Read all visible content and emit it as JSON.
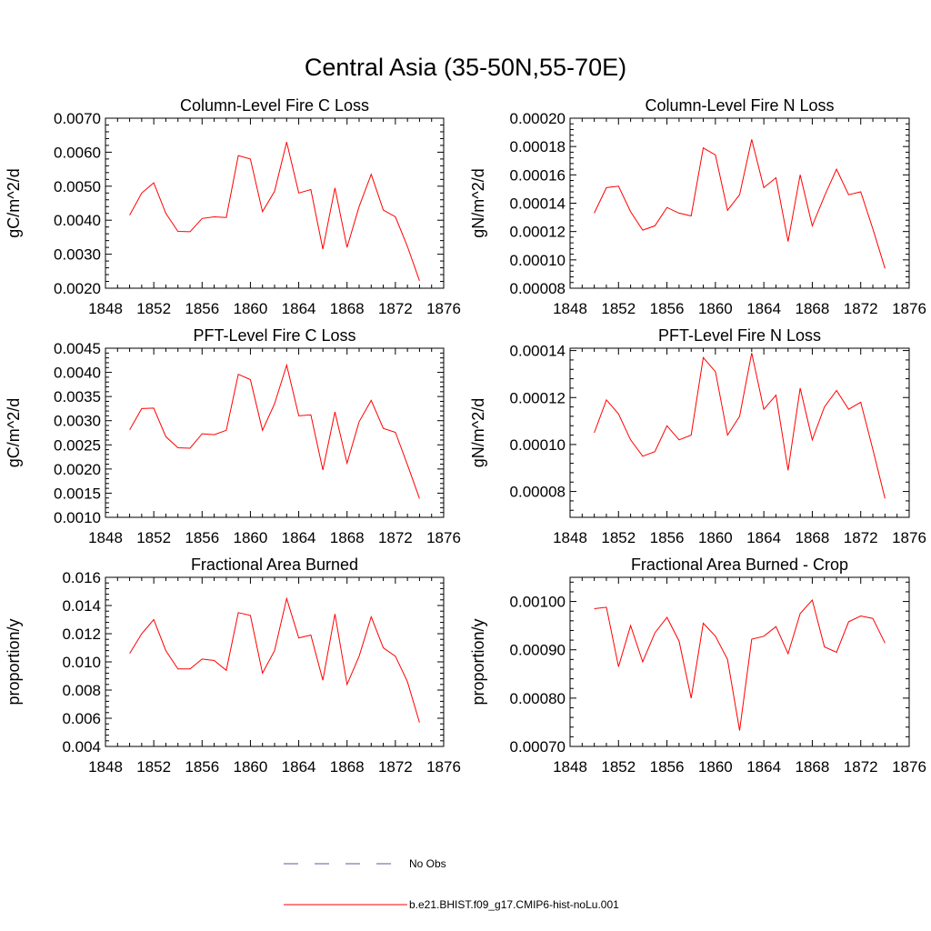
{
  "page_title": "Central Asia (35-50N,55-70E)",
  "colors": {
    "model_line": "#ff0000",
    "obs_line": "#5a5aa8",
    "axis": "#000000"
  },
  "legend": {
    "obs_label": "No Obs",
    "model_label": "b.e21.BHIST.f09_g17.CMIP6-hist-noLu.001"
  },
  "chart_data": [
    {
      "type": "line",
      "title": "Column-Level Fire C Loss",
      "xlabel": "",
      "ylabel": "gC/m^2/d",
      "xlim": [
        1848,
        1876
      ],
      "ylim": [
        0.002,
        0.007
      ],
      "x_ticks": [
        "1848",
        "1852",
        "1856",
        "1860",
        "1864",
        "1868",
        "1872",
        "1876"
      ],
      "y_ticks": [
        "0.0020",
        "0.0030",
        "0.0040",
        "0.0050",
        "0.0060",
        "0.0070"
      ],
      "grid": false,
      "series": [
        {
          "x": [
            1850,
            1851,
            1852,
            1853,
            1854,
            1855,
            1856,
            1857,
            1858,
            1859,
            1860,
            1861,
            1862,
            1863,
            1864,
            1865,
            1866,
            1867,
            1868,
            1869,
            1870,
            1871,
            1872,
            1873,
            1874
          ],
          "values": [
            0.00415,
            0.0048,
            0.0051,
            0.0042,
            0.00367,
            0.00366,
            0.00405,
            0.0041,
            0.00408,
            0.0059,
            0.0058,
            0.00425,
            0.00485,
            0.0063,
            0.0048,
            0.0049,
            0.00315,
            0.00495,
            0.0032,
            0.0044,
            0.00535,
            0.0043,
            0.0041,
            0.00323,
            0.00222
          ]
        }
      ]
    },
    {
      "type": "line",
      "title": "Column-Level Fire N Loss",
      "xlabel": "",
      "ylabel": "gN/m^2/d",
      "xlim": [
        1848,
        1876
      ],
      "ylim": [
        8e-05,
        0.0002
      ],
      "x_ticks": [
        "1848",
        "1852",
        "1856",
        "1860",
        "1864",
        "1868",
        "1872",
        "1876"
      ],
      "y_ticks": [
        "0.00008",
        "0.00010",
        "0.00012",
        "0.00014",
        "0.00016",
        "0.00018",
        "0.00020"
      ],
      "grid": false,
      "series": [
        {
          "x": [
            1850,
            1851,
            1852,
            1853,
            1854,
            1855,
            1856,
            1857,
            1858,
            1859,
            1860,
            1861,
            1862,
            1863,
            1864,
            1865,
            1866,
            1867,
            1868,
            1869,
            1870,
            1871,
            1872,
            1873,
            1874
          ],
          "values": [
            0.000133,
            0.000151,
            0.000152,
            0.000134,
            0.000121,
            0.000124,
            0.000137,
            0.000133,
            0.000131,
            0.000179,
            0.000174,
            0.000135,
            0.000146,
            0.000185,
            0.000151,
            0.000158,
            0.000113,
            0.00016,
            0.000124,
            0.000145,
            0.000164,
            0.000146,
            0.000148,
            0.000122,
            9.4e-05
          ]
        }
      ]
    },
    {
      "type": "line",
      "title": "PFT-Level Fire C Loss",
      "xlabel": "",
      "ylabel": "gC/m^2/d",
      "xlim": [
        1848,
        1876
      ],
      "ylim": [
        0.001,
        0.0045
      ],
      "x_ticks": [
        "1848",
        "1852",
        "1856",
        "1860",
        "1864",
        "1868",
        "1872",
        "1876"
      ],
      "y_ticks": [
        "0.0010",
        "0.0015",
        "0.0020",
        "0.0025",
        "0.0030",
        "0.0035",
        "0.0040",
        "0.0045"
      ],
      "grid": false,
      "series": [
        {
          "x": [
            1850,
            1851,
            1852,
            1853,
            1854,
            1855,
            1856,
            1857,
            1858,
            1859,
            1860,
            1861,
            1862,
            1863,
            1864,
            1865,
            1866,
            1867,
            1868,
            1869,
            1870,
            1871,
            1872,
            1873,
            1874
          ],
          "values": [
            0.00281,
            0.00325,
            0.00326,
            0.00267,
            0.00244,
            0.00243,
            0.00273,
            0.00271,
            0.0028,
            0.00396,
            0.00385,
            0.0028,
            0.00335,
            0.00415,
            0.0031,
            0.00312,
            0.00198,
            0.00318,
            0.00212,
            0.00298,
            0.00342,
            0.00284,
            0.00276,
            0.00209,
            0.00139
          ]
        }
      ]
    },
    {
      "type": "line",
      "title": "PFT-Level Fire N Loss",
      "xlabel": "",
      "ylabel": "gN/m^2/d",
      "xlim": [
        1848,
        1876
      ],
      "ylim": [
        6.9e-05,
        0.000141
      ],
      "x_ticks": [
        "1848",
        "1852",
        "1856",
        "1860",
        "1864",
        "1868",
        "1872",
        "1876"
      ],
      "y_ticks": [
        "0.00008",
        "0.00010",
        "0.00012",
        "0.00014"
      ],
      "grid": false,
      "series": [
        {
          "x": [
            1850,
            1851,
            1852,
            1853,
            1854,
            1855,
            1856,
            1857,
            1858,
            1859,
            1860,
            1861,
            1862,
            1863,
            1864,
            1865,
            1866,
            1867,
            1868,
            1869,
            1870,
            1871,
            1872,
            1873,
            1874
          ],
          "values": [
            0.000105,
            0.000119,
            0.000113,
            0.000102,
            9.5e-05,
            9.7e-05,
            0.000108,
            0.000102,
            0.000104,
            0.000137,
            0.000131,
            0.000104,
            0.000112,
            0.000139,
            0.000115,
            0.000121,
            8.9e-05,
            0.000124,
            0.000102,
            0.000116,
            0.000123,
            0.000115,
            0.000118,
            9.8e-05,
            7.7e-05
          ]
        }
      ]
    },
    {
      "type": "line",
      "title": "Fractional Area Burned",
      "xlabel": "",
      "ylabel": "proportion/y",
      "xlim": [
        1848,
        1876
      ],
      "ylim": [
        0.004,
        0.016
      ],
      "x_ticks": [
        "1848",
        "1852",
        "1856",
        "1860",
        "1864",
        "1868",
        "1872",
        "1876"
      ],
      "y_ticks": [
        "0.004",
        "0.006",
        "0.008",
        "0.010",
        "0.012",
        "0.014",
        "0.016"
      ],
      "grid": false,
      "series": [
        {
          "x": [
            1850,
            1851,
            1852,
            1853,
            1854,
            1855,
            1856,
            1857,
            1858,
            1859,
            1860,
            1861,
            1862,
            1863,
            1864,
            1865,
            1866,
            1867,
            1868,
            1869,
            1870,
            1871,
            1872,
            1873,
            1874
          ],
          "values": [
            0.0106,
            0.012,
            0.013,
            0.0108,
            0.0095,
            0.0095,
            0.0102,
            0.0101,
            0.0094,
            0.0135,
            0.0133,
            0.0092,
            0.0108,
            0.0145,
            0.0117,
            0.0119,
            0.0087,
            0.0134,
            0.0084,
            0.0104,
            0.0132,
            0.011,
            0.0104,
            0.0086,
            0.0057
          ]
        }
      ]
    },
    {
      "type": "line",
      "title": "Fractional Area Burned - Crop",
      "xlabel": "",
      "ylabel": "proportion/y",
      "xlim": [
        1848,
        1876
      ],
      "ylim": [
        0.0007,
        0.00105
      ],
      "x_ticks": [
        "1848",
        "1852",
        "1856",
        "1860",
        "1864",
        "1868",
        "1872",
        "1876"
      ],
      "y_ticks": [
        "0.00070",
        "0.00080",
        "0.00090",
        "0.00100"
      ],
      "grid": false,
      "series": [
        {
          "x": [
            1850,
            1851,
            1852,
            1853,
            1854,
            1855,
            1856,
            1857,
            1858,
            1859,
            1860,
            1861,
            1862,
            1863,
            1864,
            1865,
            1866,
            1867,
            1868,
            1869,
            1870,
            1871,
            1872,
            1873,
            1874
          ],
          "values": [
            0.000985,
            0.000988,
            0.000865,
            0.00095,
            0.000875,
            0.000935,
            0.000967,
            0.000918,
            0.0008,
            0.000955,
            0.000928,
            0.00088,
            0.000733,
            0.000922,
            0.000928,
            0.000948,
            0.000892,
            0.000975,
            0.001003,
            0.000906,
            0.000895,
            0.000958,
            0.00097,
            0.000965,
            0.000914
          ]
        }
      ]
    }
  ]
}
